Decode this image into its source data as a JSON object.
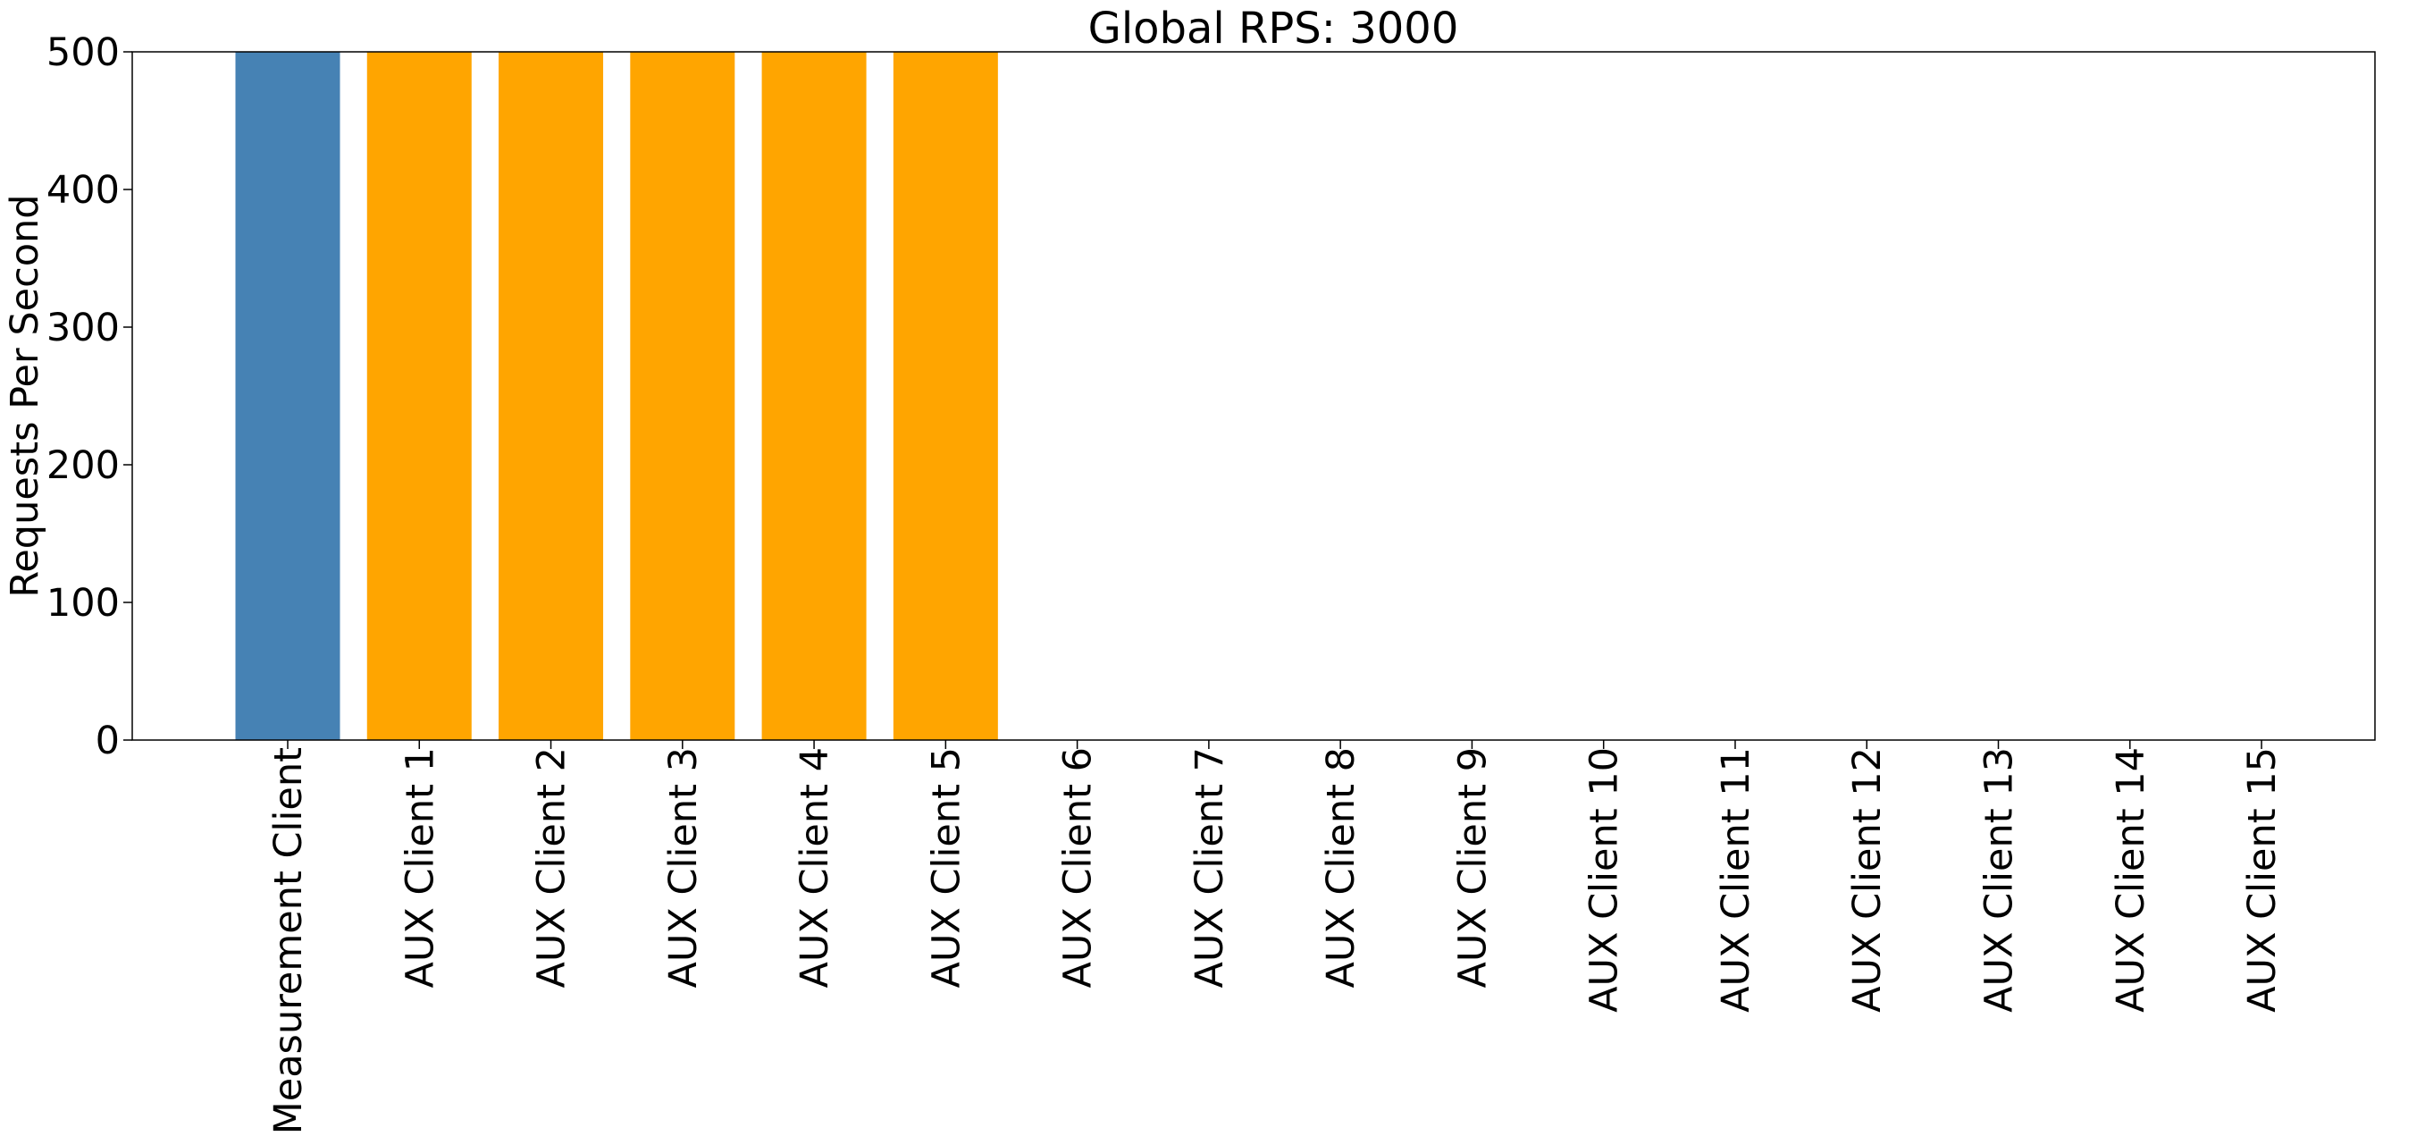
{
  "chart_data": {
    "type": "bar",
    "title": "Global RPS: 3000",
    "xlabel": "",
    "ylabel": "Requests Per Second",
    "ylim": [
      0,
      500
    ],
    "yticks": [
      0,
      100,
      200,
      300,
      400,
      500
    ],
    "categories": [
      "Measurement Client",
      "AUX Client 1",
      "AUX Client 2",
      "AUX Client 3",
      "AUX Client 4",
      "AUX Client 5",
      "AUX Client 6",
      "AUX Client 7",
      "AUX Client 8",
      "AUX Client 9",
      "AUX Client 10",
      "AUX Client 11",
      "AUX Client 12",
      "AUX Client 13",
      "AUX Client 14",
      "AUX Client 15"
    ],
    "values": [
      500,
      500,
      500,
      500,
      500,
      500,
      0,
      0,
      0,
      0,
      0,
      0,
      0,
      0,
      0,
      0
    ],
    "colors": {
      "measurement": "#4682b4",
      "aux": "#ffa500"
    },
    "grid": false,
    "legend": "none"
  }
}
